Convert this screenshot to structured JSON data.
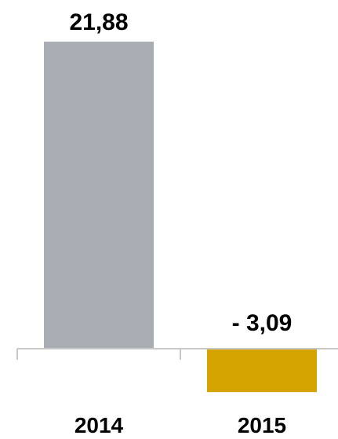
{
  "chart_data": {
    "type": "bar",
    "categories": [
      "2014",
      "2015"
    ],
    "values": [
      21.88,
      -3.09
    ],
    "data_labels": [
      "21,88",
      "- 3,09"
    ],
    "colors": [
      "#aaadb3",
      "#d4a300"
    ],
    "ylim": [
      -3.5,
      22
    ],
    "grid": false,
    "legend": "none",
    "title": "",
    "xlabel": "",
    "ylabel": ""
  }
}
